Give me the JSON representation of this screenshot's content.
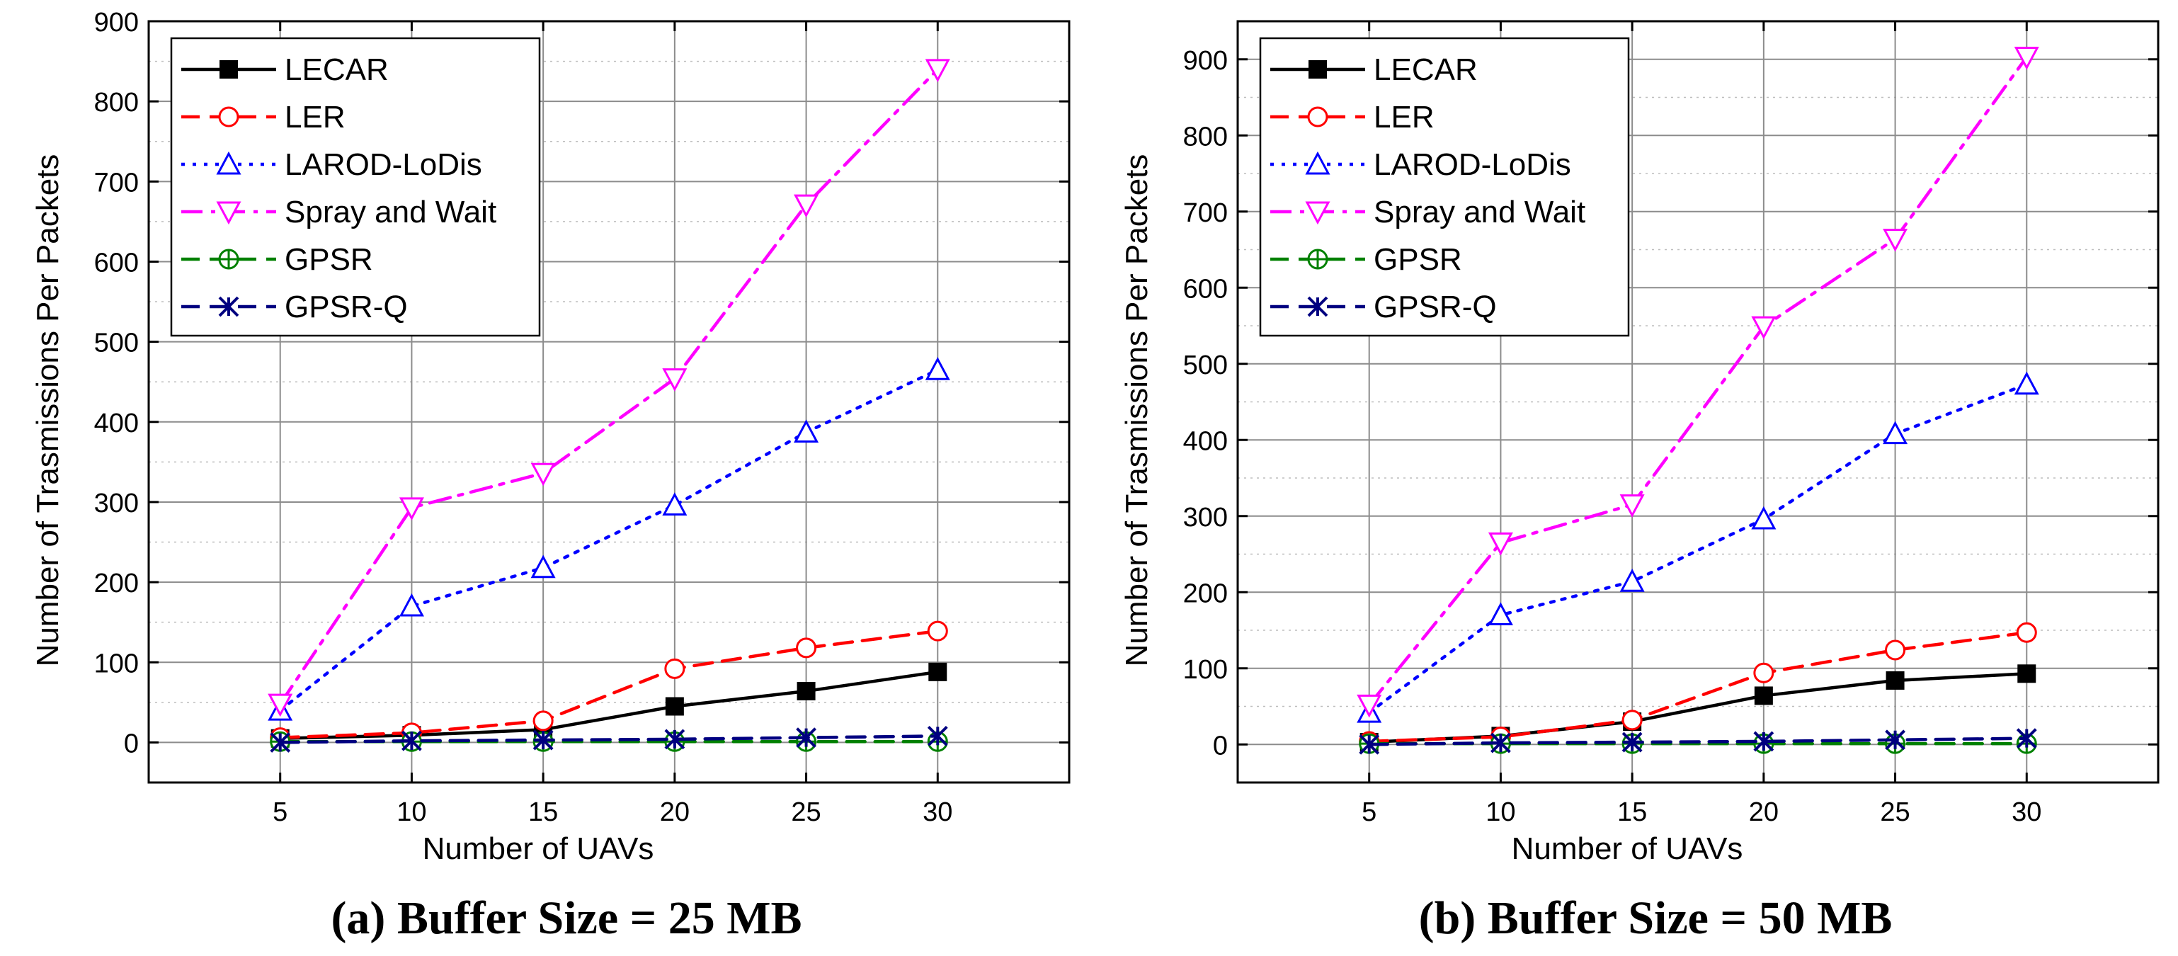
{
  "chart_data": [
    {
      "type": "line",
      "caption": "(a) Buffer Size = 25 MB",
      "xlabel": "Number of UAVs",
      "ylabel": "Number of Trasmissions Per Packets",
      "x": [
        5,
        10,
        15,
        20,
        25,
        30
      ],
      "x_ticks": [
        "5",
        "10",
        "15",
        "20",
        "25",
        "30"
      ],
      "xlim": [
        0,
        35
      ],
      "ylim": [
        -50,
        900
      ],
      "y_ticks": [
        0,
        100,
        200,
        300,
        400,
        500,
        600,
        700,
        800,
        900
      ],
      "grid": true,
      "legend_position": "top-left",
      "series": [
        {
          "name": "LECAR",
          "color": "#000000",
          "dash": "solid",
          "marker": "square-filled",
          "values": [
            5,
            9,
            16,
            45,
            64,
            88
          ]
        },
        {
          "name": "LER",
          "color": "#ff0000",
          "dash": "dashed",
          "marker": "circle",
          "values": [
            6,
            12,
            27,
            92,
            118,
            139
          ]
        },
        {
          "name": "LAROD-LoDis",
          "color": "#0000ff",
          "dash": "dotted",
          "marker": "triangle-up",
          "values": [
            40,
            170,
            218,
            296,
            387,
            465
          ]
        },
        {
          "name": "Spray and Wait",
          "color": "#ff00ff",
          "dash": "dash-dot",
          "marker": "triangle-down",
          "values": [
            48,
            293,
            336,
            454,
            671,
            840
          ]
        },
        {
          "name": "GPSR",
          "color": "#008000",
          "dash": "dashed",
          "marker": "circle-plus",
          "values": [
            1,
            1,
            1,
            1,
            1,
            1
          ]
        },
        {
          "name": "GPSR-Q",
          "color": "#000080",
          "dash": "dashed",
          "marker": "x-star",
          "values": [
            0,
            2,
            3,
            4,
            6,
            8
          ]
        }
      ]
    },
    {
      "type": "line",
      "caption": "(b) Buffer Size = 50 MB",
      "xlabel": "Number of UAVs",
      "ylabel": "Number of Trasmissions Per Packets",
      "x": [
        5,
        10,
        15,
        20,
        25,
        30
      ],
      "x_ticks": [
        "5",
        "10",
        "15",
        "20",
        "25",
        "30"
      ],
      "xlim": [
        0,
        35
      ],
      "ylim": [
        -50,
        950
      ],
      "y_ticks": [
        0,
        100,
        200,
        300,
        400,
        500,
        600,
        700,
        800,
        900
      ],
      "grid": true,
      "legend_position": "top-left",
      "series": [
        {
          "name": "LECAR",
          "color": "#000000",
          "dash": "solid",
          "marker": "square-filled",
          "values": [
            3,
            11,
            30,
            64,
            84,
            93
          ]
        },
        {
          "name": "LER",
          "color": "#ff0000",
          "dash": "dashed",
          "marker": "circle",
          "values": [
            4,
            10,
            32,
            94,
            124,
            147
          ]
        },
        {
          "name": "LAROD-LoDis",
          "color": "#0000ff",
          "dash": "dotted",
          "marker": "triangle-up",
          "values": [
            42,
            170,
            214,
            296,
            408,
            473
          ]
        },
        {
          "name": "Spray and Wait",
          "color": "#ff00ff",
          "dash": "dash-dot",
          "marker": "triangle-down",
          "values": [
            52,
            265,
            315,
            549,
            664,
            903
          ]
        },
        {
          "name": "GPSR",
          "color": "#008000",
          "dash": "dashed",
          "marker": "circle-plus",
          "values": [
            1,
            1,
            1,
            1,
            1,
            1
          ]
        },
        {
          "name": "GPSR-Q",
          "color": "#000080",
          "dash": "dashed",
          "marker": "x-star",
          "values": [
            0,
            2,
            3,
            4,
            6,
            8
          ]
        }
      ]
    }
  ]
}
